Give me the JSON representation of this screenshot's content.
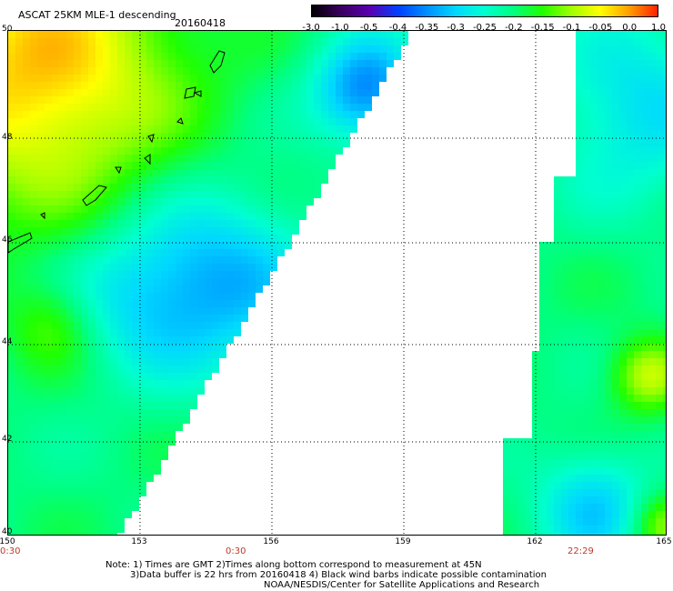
{
  "header": {
    "title": "ASCAT 25KM MLE-1 descending",
    "date": "20160418"
  },
  "colorbar": {
    "labels": [
      "-3.0",
      "-1.0",
      "-0.5",
      "-0.4",
      "-0.35",
      "-0.3",
      "-0.25",
      "-0.2",
      "-0.15",
      "-0.1",
      "-0.05",
      "0.0",
      "1.0"
    ],
    "colors": [
      "#000000",
      "#3a0060",
      "#5a00b0",
      "#0040ff",
      "#0090ff",
      "#00d8ff",
      "#00ffd0",
      "#00ff80",
      "#20ff00",
      "#a0ff00",
      "#ffff00",
      "#ffa000",
      "#ff2000"
    ]
  },
  "axes": {
    "lat_labels": [
      "50",
      "48",
      "46",
      "44",
      "42",
      "40"
    ],
    "lon_labels": [
      "150",
      "153",
      "156",
      "159",
      "162",
      "165"
    ],
    "times": [
      "0:30",
      "0:30",
      "22:29"
    ]
  },
  "notes": [
    "Note: 1) Times are GMT 2)Times along bottom correspond to measurement at 45N",
    "3)Data buffer is 22 hrs from 20160418 4) Black wind barbs indicate possible contamination",
    "NOAA/NESDIS/Center for Satellite Applications and Research"
  ]
}
